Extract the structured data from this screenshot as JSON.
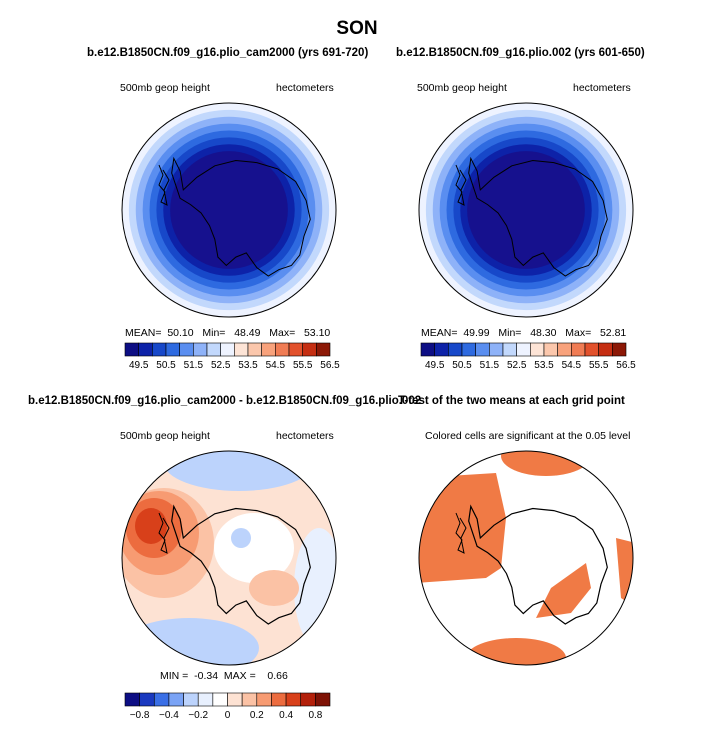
{
  "figure_title": "SON",
  "colors": {
    "map_bar": [
      "#0d0e84",
      "#0d22a8",
      "#1748c9",
      "#2e6ae0",
      "#5a8ef0",
      "#8eb2f8",
      "#c2d8fc",
      "#eef3ff",
      "#fde4d6",
      "#fbc7ac",
      "#f8a27c",
      "#f07c54",
      "#e2512c",
      "#c52e12",
      "#8c1806"
    ],
    "diff_bar": [
      "#0d0e84",
      "#1a39bf",
      "#3a6fe6",
      "#7aa3f5",
      "#bcd3fc",
      "#e8f0fe",
      "#ffffff",
      "#fde2d3",
      "#fbc2a5",
      "#f79b72",
      "#ec6c3f",
      "#d8401a",
      "#b3200a",
      "#7e1205"
    ],
    "sig_fill": "#f07a45",
    "antarctica_fill": "#16118e",
    "outline": "#000000"
  },
  "panels": [
    {
      "id": "top-left",
      "title": "b.e12.B1850CN.f09_g16.plio_cam2000 (yrs 691-720)",
      "left_label": "500mb geop height",
      "right_label": "hectometers",
      "stats": {
        "mean_label": "MEAN=",
        "mean": "50.10",
        "min_label": "Min=",
        "min": "48.49",
        "max_label": "Max=",
        "max": "53.10"
      }
    },
    {
      "id": "top-right",
      "title": "b.e12.B1850CN.f09_g16.plio.002 (yrs 601-650)",
      "left_label": "500mb geop height",
      "right_label": "hectometers",
      "stats": {
        "mean_label": "MEAN=",
        "mean": "49.99",
        "min_label": "Min=",
        "min": "48.30",
        "max_label": "Max=",
        "max": "52.81"
      }
    },
    {
      "id": "bottom-left",
      "title": "b.e12.B1850CN.f09_g16.plio_cam2000 - b.e12.B1850CN.f09_g16.plio.002",
      "left_label": "500mb geop height",
      "right_label": "hectometers",
      "stats": {
        "min_label": "MIN =",
        "min": "-0.34",
        "max_label": "MAX =",
        "max": "0.66"
      }
    },
    {
      "id": "bottom-right",
      "title": "T-test of the two means at each grid point",
      "left_label": "Colored cells are significant at the 0.05 level"
    }
  ],
  "chart_data": [
    {
      "type": "heatmap",
      "projection": "south polar stereographic",
      "title": "b.e12.B1850CN.f09_g16.plio_cam2000 (yrs 691-720)",
      "variable": "500mb geop height",
      "units": "hectometers",
      "mean": 50.1,
      "min": 48.49,
      "max": 53.1,
      "levels": [
        49.5,
        50,
        50.5,
        51,
        51.5,
        52,
        52.5,
        53,
        53.5,
        54,
        54.5,
        55,
        55.5,
        56,
        56.5
      ],
      "tick_labels": [
        "49.5",
        "50.5",
        "51.5",
        "52.5",
        "53.5",
        "54.5",
        "55.5",
        "56.5"
      ],
      "rings_center_to_edge": [
        49.5,
        50.0,
        50.5,
        51.0,
        51.5,
        52.0,
        52.5,
        53.0
      ]
    },
    {
      "type": "heatmap",
      "projection": "south polar stereographic",
      "title": "b.e12.B1850CN.f09_g16.plio.002 (yrs 601-650)",
      "variable": "500mb geop height",
      "units": "hectometers",
      "mean": 49.99,
      "min": 48.3,
      "max": 52.81,
      "levels": [
        49.5,
        50,
        50.5,
        51,
        51.5,
        52,
        52.5,
        53,
        53.5,
        54,
        54.5,
        55,
        55.5,
        56,
        56.5
      ],
      "tick_labels": [
        "49.5",
        "50.5",
        "51.5",
        "52.5",
        "53.5",
        "54.5",
        "55.5",
        "56.5"
      ],
      "rings_center_to_edge": [
        49.5,
        50.0,
        50.5,
        51.0,
        51.5,
        52.0,
        52.5,
        53.0
      ]
    },
    {
      "type": "heatmap",
      "projection": "south polar stereographic",
      "title": "b.e12.B1850CN.f09_g16.plio_cam2000 - b.e12.B1850CN.f09_g16.plio.002",
      "variable": "500mb geop height",
      "units": "hectometers",
      "min": -0.34,
      "max": 0.66,
      "levels": [
        -0.8,
        -0.6,
        -0.4,
        -0.3,
        -0.2,
        -0.1,
        0,
        0.1,
        0.2,
        0.3,
        0.4,
        0.6,
        0.8
      ],
      "tick_labels": [
        "−0.8",
        "−0.4",
        "−0.2",
        "0",
        "0.2",
        "0.4",
        "0.8"
      ]
    },
    {
      "type": "heatmap",
      "projection": "south polar stereographic",
      "title": "T-test of the two means at each grid point",
      "note": "Colored cells are significant at the 0.05 level"
    }
  ]
}
